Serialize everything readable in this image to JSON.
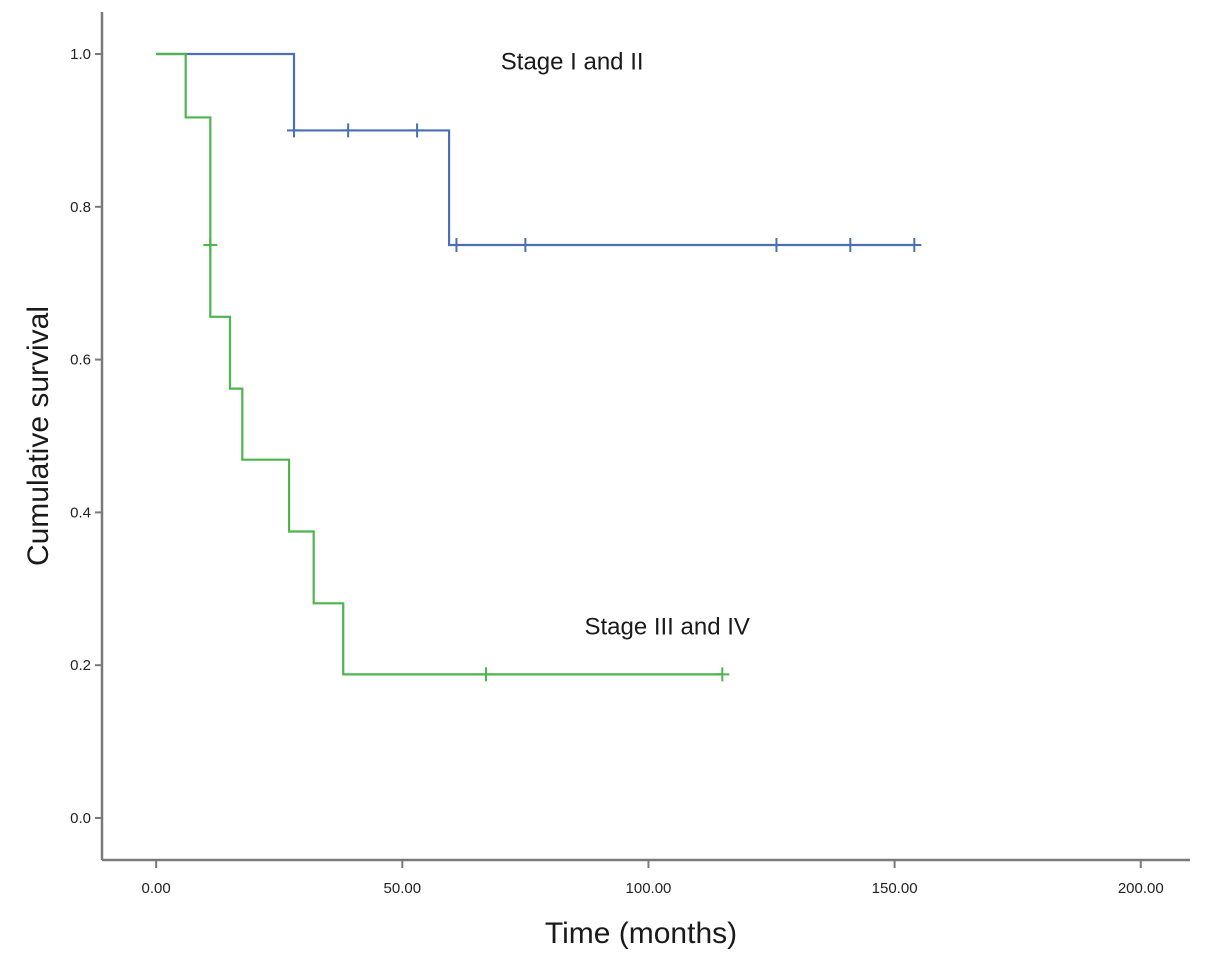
{
  "chart_data": {
    "type": "line",
    "subtype": "kaplan-meier-step",
    "title": "",
    "xlabel": "Time (months)",
    "ylabel": "Cumulative survival",
    "xlim": [
      -11,
      210
    ],
    "ylim": [
      -0.055,
      1.055
    ],
    "x_ticks": [
      0,
      50,
      100,
      150,
      200
    ],
    "x_tick_labels": [
      "0.00",
      "50.00",
      "100.00",
      "150.00",
      "200.00"
    ],
    "y_ticks": [
      0.0,
      0.2,
      0.4,
      0.6,
      0.8,
      1.0
    ],
    "y_tick_labels": [
      "0.0",
      "0.2",
      "0.4",
      "0.6",
      "0.8",
      "1.0"
    ],
    "grid": false,
    "legend": "none",
    "series": [
      {
        "name": "Stage I and II",
        "color": "#4a6fb5",
        "label_at": [
          70,
          0.98
        ],
        "steps": [
          [
            0,
            1.0
          ],
          [
            28,
            0.9
          ],
          [
            59.5,
            0.75
          ]
        ],
        "end_x": 154,
        "censored": [
          [
            28,
            0.9
          ],
          [
            39,
            0.9
          ],
          [
            53,
            0.9
          ],
          [
            61,
            0.75
          ],
          [
            75,
            0.75
          ],
          [
            126,
            0.75
          ],
          [
            141,
            0.75
          ],
          [
            154,
            0.75
          ]
        ]
      },
      {
        "name": "Stage III and IV",
        "color": "#4cb54c",
        "label_at": [
          87,
          0.24
        ],
        "steps": [
          [
            0,
            1.0
          ],
          [
            6,
            0.917
          ],
          [
            11,
            0.656
          ],
          [
            15,
            0.562
          ],
          [
            17.5,
            0.469
          ],
          [
            27,
            0.375
          ],
          [
            32,
            0.281
          ],
          [
            38,
            0.188
          ]
        ],
        "end_x": 115,
        "censored": [
          [
            11,
            0.75
          ],
          [
            67,
            0.188
          ],
          [
            115,
            0.188
          ]
        ]
      }
    ]
  }
}
